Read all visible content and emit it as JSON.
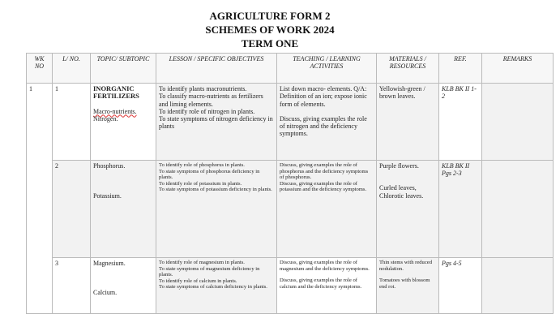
{
  "title": {
    "line1": "AGRICULTURE FORM 2",
    "line2": "SCHEMES OF WORK 2024",
    "line3": "TERM ONE"
  },
  "headers": [
    "WK NO",
    "L/ NO.",
    "TOPIC/ SUBTOPIC",
    "LESSON / SPECIFIC OBJECTIVES",
    "TEACHING / LEARNING ACTIVITIES",
    "MATERIALS / RESOURCES",
    "REF.",
    "REMARKS"
  ],
  "rows": [
    {
      "wk": "1",
      "lno": "1",
      "topic": "INORGANIC FERTILIZERS",
      "sub1": "Macro-nutrients.",
      "sub2": "Nitrogen.",
      "obj": [
        "To identify plants macronutrients.",
        "To classify macro-nutrients as fertilizers and liming elements.",
        "To identify role of nitrogen in plants.",
        "To state symptoms of nitrogen deficiency in plants"
      ],
      "act1": "List down macro- elements. Q/A: Definition of an ion; expose ionic form of elements.",
      "act2": "Discuss, giving examples the role of nitrogen and the deficiency symptoms.",
      "mat1": "Yellowish-green / brown leaves.",
      "mat2": "",
      "ref": "KLB BK II 1-2",
      "remarks": ""
    },
    {
      "wk": "",
      "lno": "2",
      "topic": "",
      "sub1": "Phosphorus.",
      "sub2": "Potassium.",
      "obj": [
        "To identify role of phosphorus in plants.",
        "To state symptoms of phosphorus deficiency in plants.",
        "To identify role of potassium in plants.",
        "To state symptoms of potassium deficiency in plants."
      ],
      "act1": "Discuss, giving examples the role of phosphorus and the deficiency symptoms of phosphorus.",
      "act2": "Discuss, giving examples the role of potassium and the deficiency symptoms.",
      "mat1": "Purple flowers.",
      "mat2": "Curled leaves, Chlorotic leaves.",
      "ref": "KLB BK II Pgs 2-3",
      "remarks": ""
    },
    {
      "wk": "",
      "lno": "3",
      "topic": "",
      "sub1": "Magnesium.",
      "sub2": "Calcium.",
      "obj": [
        "To identify role of magnesium in plants.",
        "To state symptoms of magnesium deficiency in plants.",
        "To identify role of calcium in plants.",
        "To state symptoms of calcium deficiency in plants."
      ],
      "act1": "Discuss, giving examples the role of magnesium and the deficiency symptoms.",
      "act2": "Discuss, giving examples the role of calcium and the deficiency symptoms.",
      "mat1": "Thin stems with reduced nodulation.",
      "mat2": "Tomatoes with blossom end rot.",
      "ref": "Pgs 4-5",
      "remarks": ""
    }
  ]
}
